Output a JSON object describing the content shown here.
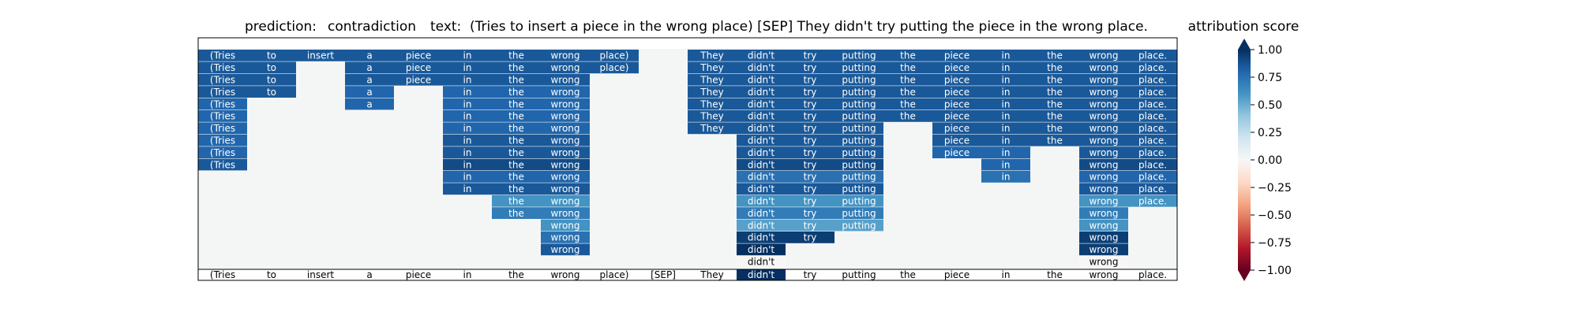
{
  "header": {
    "prediction_label": "prediction:",
    "prediction_value": "contradiction",
    "text_label": "text:",
    "text_value": "(Tries to insert a piece in the wrong place) [SEP] They didn't try putting the piece in the wrong place."
  },
  "chart_data": {
    "type": "heatmap",
    "tokens": [
      "(Tries",
      "to",
      "insert",
      "a",
      "piece",
      "in",
      "the",
      "wrong",
      "place)",
      "[SEP]",
      "They",
      "didn't",
      "try",
      "putting",
      "the",
      "piece",
      "in",
      "the",
      "wrong",
      "place."
    ],
    "levels": [
      [
        0.85,
        0.85,
        0.85,
        0.85,
        0.85,
        0.85,
        0.85,
        0.85,
        0.85,
        null,
        0.85,
        0.85,
        0.85,
        0.85,
        0.85,
        0.85,
        0.85,
        0.85,
        0.85,
        0.85
      ],
      [
        0.85,
        0.85,
        null,
        0.85,
        0.85,
        0.85,
        0.85,
        0.85,
        0.85,
        null,
        0.85,
        0.85,
        0.85,
        0.85,
        0.85,
        0.85,
        0.85,
        0.85,
        0.85,
        0.85
      ],
      [
        0.85,
        0.85,
        null,
        0.85,
        0.85,
        0.85,
        0.85,
        0.85,
        null,
        null,
        0.85,
        0.85,
        0.85,
        0.85,
        0.85,
        0.85,
        0.85,
        0.85,
        0.85,
        0.85
      ],
      [
        0.85,
        0.85,
        null,
        0.8,
        null,
        0.8,
        0.8,
        0.8,
        null,
        null,
        0.85,
        0.85,
        0.85,
        0.85,
        0.85,
        0.85,
        0.85,
        0.85,
        0.85,
        0.85
      ],
      [
        0.8,
        null,
        null,
        0.8,
        null,
        0.8,
        0.8,
        0.8,
        null,
        null,
        0.85,
        0.85,
        0.85,
        0.85,
        0.85,
        0.85,
        0.85,
        0.85,
        0.85,
        0.85
      ],
      [
        0.8,
        null,
        null,
        null,
        null,
        0.8,
        0.8,
        0.8,
        null,
        null,
        0.85,
        0.85,
        0.85,
        0.85,
        0.85,
        0.85,
        0.85,
        0.85,
        0.85,
        0.85
      ],
      [
        0.8,
        null,
        null,
        null,
        null,
        0.8,
        0.8,
        0.8,
        null,
        null,
        0.85,
        0.85,
        0.85,
        0.85,
        null,
        0.85,
        0.85,
        0.85,
        0.85,
        0.85
      ],
      [
        0.8,
        null,
        null,
        null,
        null,
        0.85,
        0.85,
        0.85,
        null,
        null,
        null,
        0.85,
        0.85,
        0.85,
        null,
        0.85,
        0.85,
        0.85,
        0.85,
        0.85
      ],
      [
        0.8,
        null,
        null,
        null,
        null,
        0.85,
        0.85,
        0.85,
        null,
        null,
        null,
        0.85,
        0.85,
        0.85,
        null,
        0.8,
        0.8,
        null,
        0.85,
        0.85
      ],
      [
        0.85,
        null,
        null,
        null,
        null,
        0.9,
        0.9,
        0.9,
        null,
        null,
        null,
        0.9,
        0.9,
        0.9,
        null,
        null,
        0.8,
        null,
        0.9,
        0.9
      ],
      [
        null,
        null,
        null,
        null,
        null,
        0.8,
        0.8,
        0.8,
        null,
        null,
        null,
        0.75,
        0.75,
        0.75,
        null,
        null,
        0.75,
        null,
        0.8,
        0.8
      ],
      [
        null,
        null,
        null,
        null,
        null,
        0.85,
        0.85,
        0.85,
        null,
        null,
        null,
        0.85,
        0.85,
        0.85,
        null,
        null,
        null,
        null,
        0.85,
        0.85
      ],
      [
        null,
        null,
        null,
        null,
        null,
        null,
        0.6,
        0.6,
        null,
        null,
        null,
        0.6,
        0.6,
        0.6,
        null,
        null,
        null,
        null,
        0.6,
        0.6
      ],
      [
        null,
        null,
        null,
        null,
        null,
        null,
        0.7,
        0.7,
        null,
        null,
        null,
        0.7,
        0.7,
        0.7,
        null,
        null,
        null,
        null,
        0.7,
        null
      ],
      [
        null,
        null,
        null,
        null,
        null,
        null,
        null,
        0.6,
        null,
        null,
        null,
        0.55,
        0.55,
        0.55,
        null,
        null,
        null,
        null,
        0.6,
        null
      ],
      [
        null,
        null,
        null,
        null,
        null,
        null,
        null,
        0.75,
        null,
        null,
        null,
        0.95,
        0.95,
        null,
        null,
        null,
        null,
        null,
        0.95,
        null
      ],
      [
        null,
        null,
        null,
        null,
        null,
        null,
        null,
        0.85,
        null,
        null,
        null,
        1.0,
        null,
        null,
        null,
        null,
        null,
        null,
        0.95,
        null
      ],
      [
        null,
        null,
        null,
        null,
        null,
        null,
        null,
        null,
        null,
        null,
        null,
        0.0,
        null,
        null,
        null,
        null,
        null,
        null,
        0.0,
        null
      ]
    ],
    "bottom_row_values": [
      0.0,
      0.0,
      0.0,
      0.0,
      0.0,
      0.0,
      0.0,
      0.0,
      0.0,
      0.0,
      0.0,
      1.0,
      0.0,
      0.0,
      0.0,
      0.0,
      0.0,
      0.0,
      0.0,
      0.0
    ],
    "colorbar": {
      "title": "attribution score",
      "range": [
        -1.0,
        1.0
      ],
      "ticks": [
        "1.00",
        "0.75",
        "0.50",
        "0.25",
        "0.00",
        "−0.25",
        "−0.50",
        "−0.75",
        "−1.00"
      ],
      "tick_values": [
        1.0,
        0.75,
        0.5,
        0.25,
        0.0,
        -0.25,
        -0.5,
        -0.75,
        -1.0
      ],
      "colormap": "RdBu",
      "extend": "both"
    },
    "colors": {
      "empty_cell": "#f4f6f6",
      "border": "#000000"
    }
  }
}
